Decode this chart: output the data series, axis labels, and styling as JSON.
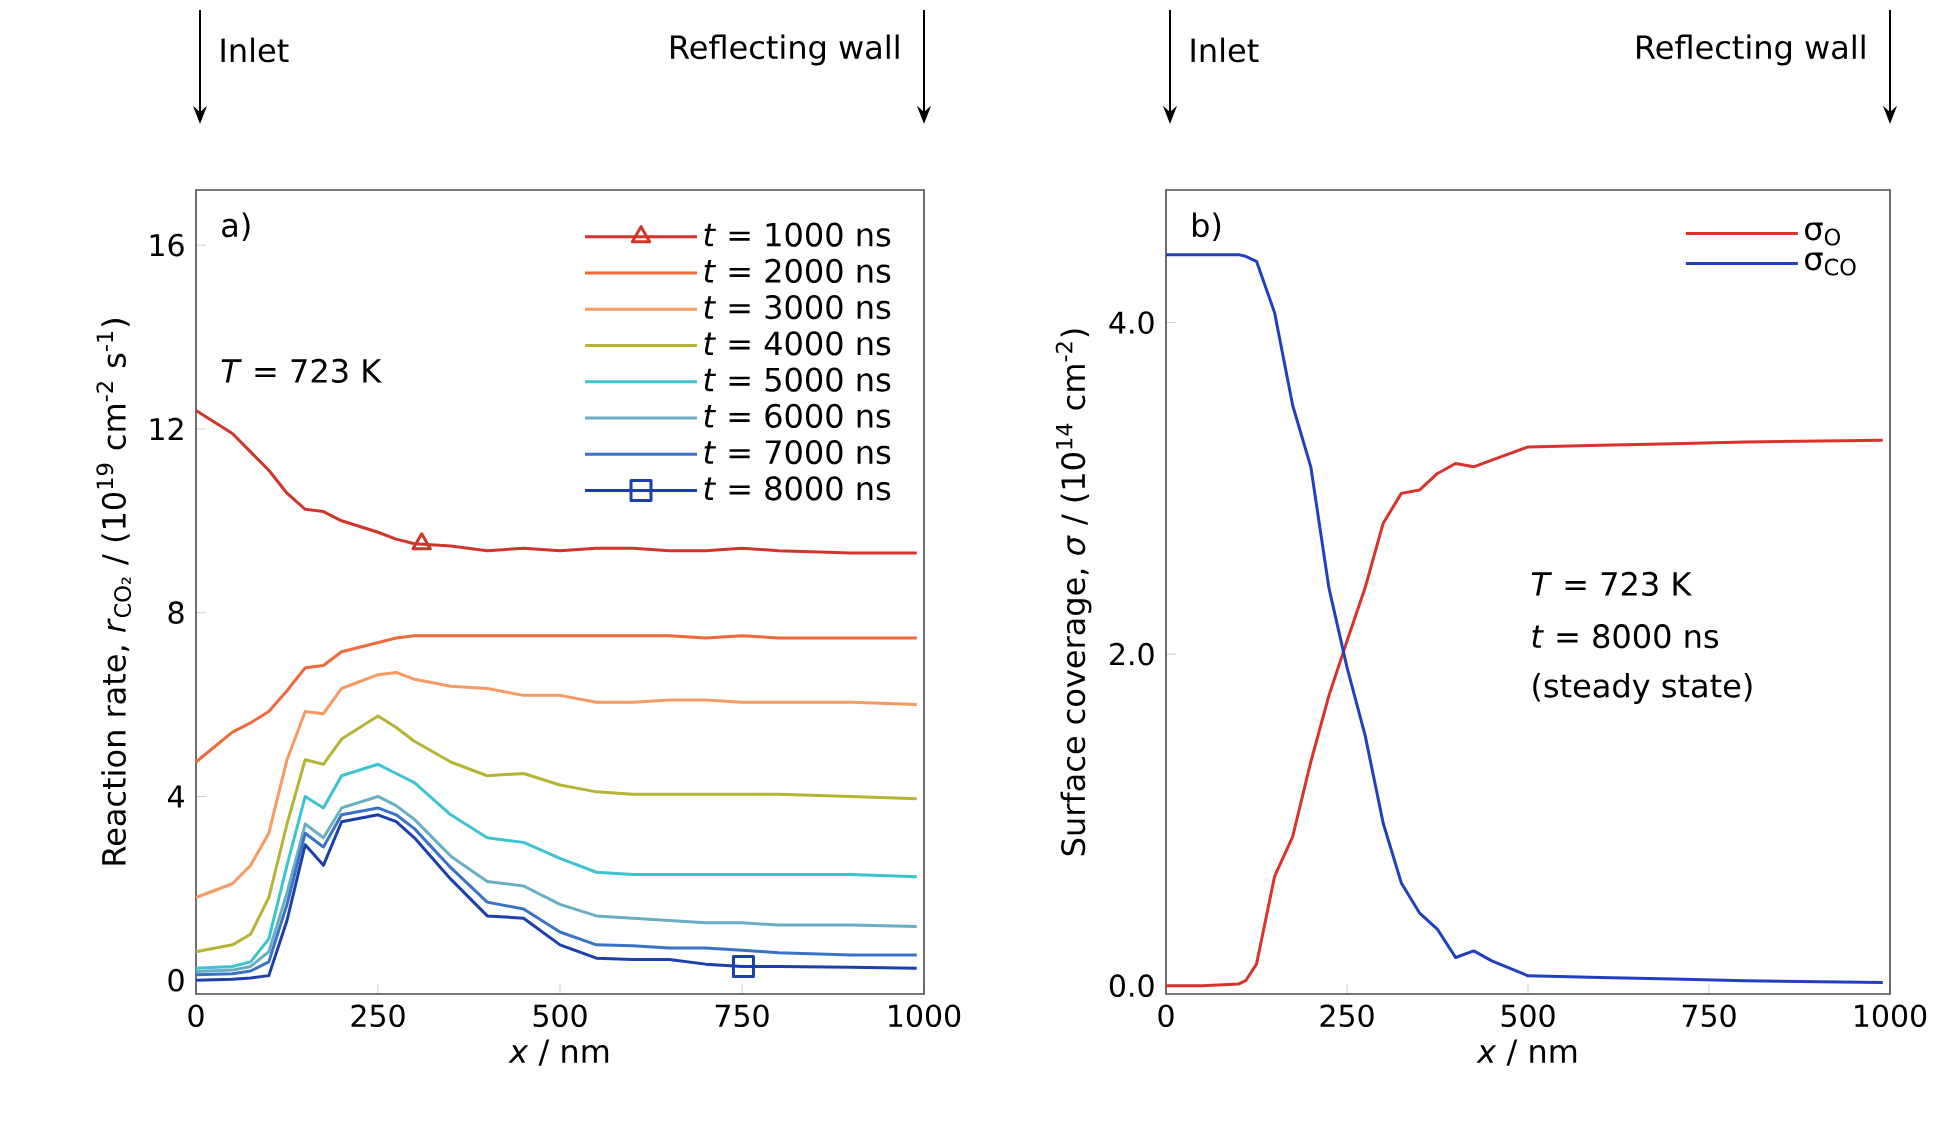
{
  "chart_data": [
    {
      "type": "line",
      "xlabel": "*x* / nm",
      "ylabel": "Reaction rate, *r*$_{CO₂}$ / (10$^{19}$ cm$^{-2}$ s$^{-1}$)",
      "annotations": [
        "Inlet",
        "Reflecting wall",
        "a)",
        "*T* = 723 K"
      ],
      "x": [
        0,
        50,
        75,
        100,
        125,
        150,
        175,
        200,
        250,
        275,
        300,
        350,
        400,
        450,
        500,
        550,
        600,
        650,
        700,
        750,
        800,
        900,
        990
      ],
      "series": [
        {
          "name": "*t* = 1000 ns",
          "color": "#d0352c",
          "values": [
            12.4,
            11.9,
            11.5,
            11.1,
            10.6,
            10.25,
            10.2,
            10.0,
            9.75,
            9.6,
            9.5,
            9.45,
            9.35,
            9.4,
            9.35,
            9.4,
            9.4,
            9.35,
            9.35,
            9.4,
            9.35,
            9.3,
            9.3
          ]
        },
        {
          "type": "scatter",
          "color": "#d0352c",
          "marker": "triangle",
          "x": [
            310
          ],
          "values": [
            9.5
          ]
        },
        {
          "name": "*t* = 2000 ns",
          "color": "#ee6a3c",
          "values": [
            4.75,
            5.4,
            5.6,
            5.85,
            6.3,
            6.8,
            6.85,
            7.15,
            7.35,
            7.45,
            7.5,
            7.5,
            7.5,
            7.5,
            7.5,
            7.5,
            7.5,
            7.5,
            7.45,
            7.5,
            7.45,
            7.45,
            7.45
          ]
        },
        {
          "name": "*t* = 3000 ns",
          "color": "#f59a62",
          "values": [
            1.8,
            2.1,
            2.5,
            3.2,
            4.8,
            5.85,
            5.8,
            6.35,
            6.65,
            6.7,
            6.55,
            6.4,
            6.35,
            6.2,
            6.2,
            6.05,
            6.05,
            6.1,
            6.1,
            6.05,
            6.05,
            6.05,
            6.0
          ]
        },
        {
          "name": "*t* = 4000 ns",
          "color": "#b5b435",
          "values": [
            0.62,
            0.77,
            1.0,
            1.8,
            3.4,
            4.8,
            4.7,
            5.25,
            5.75,
            5.5,
            5.2,
            4.75,
            4.45,
            4.5,
            4.25,
            4.1,
            4.05,
            4.05,
            4.05,
            4.05,
            4.05,
            4.0,
            3.95
          ]
        },
        {
          "name": "*t* = 5000 ns",
          "color": "#3cc4d0",
          "values": [
            0.26,
            0.3,
            0.4,
            0.9,
            2.5,
            4.0,
            3.75,
            4.45,
            4.7,
            4.5,
            4.3,
            3.6,
            3.1,
            3.0,
            2.65,
            2.35,
            2.3,
            2.3,
            2.3,
            2.3,
            2.3,
            2.3,
            2.25
          ]
        },
        {
          "name": "*t* = 6000 ns",
          "color": "#6aaec4",
          "values": [
            0.19,
            0.22,
            0.3,
            0.62,
            1.9,
            3.4,
            3.1,
            3.75,
            4.0,
            3.8,
            3.5,
            2.7,
            2.15,
            2.05,
            1.65,
            1.4,
            1.35,
            1.3,
            1.25,
            1.25,
            1.2,
            1.2,
            1.17
          ]
        },
        {
          "name": "*t* = 7000 ns",
          "color": "#3a72c6",
          "values": [
            0.12,
            0.14,
            0.2,
            0.4,
            1.65,
            3.2,
            2.9,
            3.6,
            3.75,
            3.6,
            3.3,
            2.45,
            1.7,
            1.55,
            1.05,
            0.77,
            0.75,
            0.7,
            0.7,
            0.65,
            0.6,
            0.55,
            0.55
          ]
        },
        {
          "name": "*t* = 8000 ns",
          "color": "#1c3fae",
          "values": [
            0.0,
            0.02,
            0.05,
            0.1,
            1.3,
            2.95,
            2.5,
            3.45,
            3.6,
            3.45,
            3.1,
            2.2,
            1.4,
            1.35,
            0.77,
            0.48,
            0.45,
            0.45,
            0.35,
            0.3,
            0.3,
            0.28,
            0.26
          ]
        },
        {
          "type": "scatter",
          "color": "#1c3fae",
          "marker": "square",
          "x": [
            752
          ],
          "values": [
            0.3
          ]
        }
      ],
      "xlim": [
        0,
        1000
      ],
      "xticks": [
        0,
        250,
        500,
        750,
        1000
      ],
      "ylim": [
        -0.3,
        17.2
      ],
      "yticks": [
        0,
        4,
        8,
        12,
        16
      ],
      "legend": "top right"
    },
    {
      "type": "line",
      "xlabel": "*x* / nm",
      "ylabel": "Surface coverage, *σ* / (10$^{14}$ cm$^{-2}$)",
      "annotations": [
        "Inlet",
        "Reflecting wall",
        "b)",
        "*T* = 723 K",
        "*t* = 8000 ns",
        "(steady state)"
      ],
      "x": [
        0,
        50,
        100,
        110,
        125,
        150,
        175,
        200,
        225,
        250,
        275,
        300,
        325,
        350,
        375,
        400,
        425,
        450,
        500,
        600,
        700,
        800,
        990
      ],
      "series": [
        {
          "name": "σ$_{O}$",
          "color": "#d9342b",
          "values": [
            0,
            0,
            0.01,
            0.03,
            0.13,
            0.66,
            0.9,
            1.35,
            1.75,
            2.08,
            2.4,
            2.79,
            2.97,
            2.99,
            3.09,
            3.15,
            3.13,
            3.17,
            3.25,
            3.26,
            3.27,
            3.28,
            3.29
          ]
        },
        {
          "name": "σ$_{CO}$",
          "color": "#2140c0",
          "values": [
            4.41,
            4.41,
            4.41,
            4.4,
            4.37,
            4.06,
            3.5,
            3.13,
            2.4,
            1.92,
            1.51,
            0.98,
            0.62,
            0.44,
            0.34,
            0.17,
            0.21,
            0.15,
            0.06,
            0.05,
            0.04,
            0.03,
            0.02
          ]
        }
      ],
      "xlim": [
        0,
        1000
      ],
      "xticks": [
        0,
        250,
        500,
        750,
        1000
      ],
      "ylim": [
        -0.05,
        4.8
      ],
      "yticks": [
        {
          "value": 0,
          "label": "0.0"
        },
        {
          "value": 2,
          "label": "2.0"
        },
        {
          "value": 4,
          "label": "4.0"
        }
      ],
      "legend": "top right"
    }
  ]
}
